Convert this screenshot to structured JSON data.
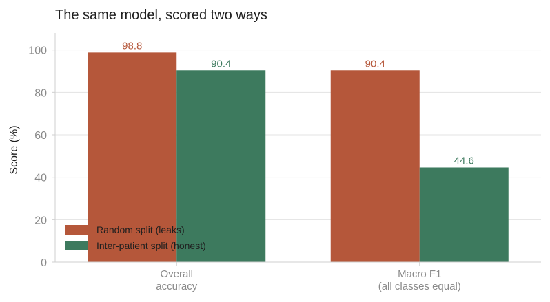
{
  "chart_data": {
    "type": "bar",
    "title": "The same model, scored two ways",
    "ylabel": "Score (%)",
    "ylim": [
      0,
      108
    ],
    "yticks": [
      0,
      20,
      40,
      60,
      80,
      100
    ],
    "grid": "horizontal",
    "legend_position": "bottom-left",
    "categories": [
      [
        "Overall",
        "accuracy"
      ],
      [
        "Macro F1",
        "(all classes equal)"
      ]
    ],
    "series": [
      {
        "name": "Random split (leaks)",
        "color": "#b5573a",
        "values": [
          98.8,
          90.4
        ]
      },
      {
        "name": "Inter-patient split (honest)",
        "color": "#3d7a5e",
        "values": [
          90.4,
          44.6
        ]
      }
    ]
  }
}
